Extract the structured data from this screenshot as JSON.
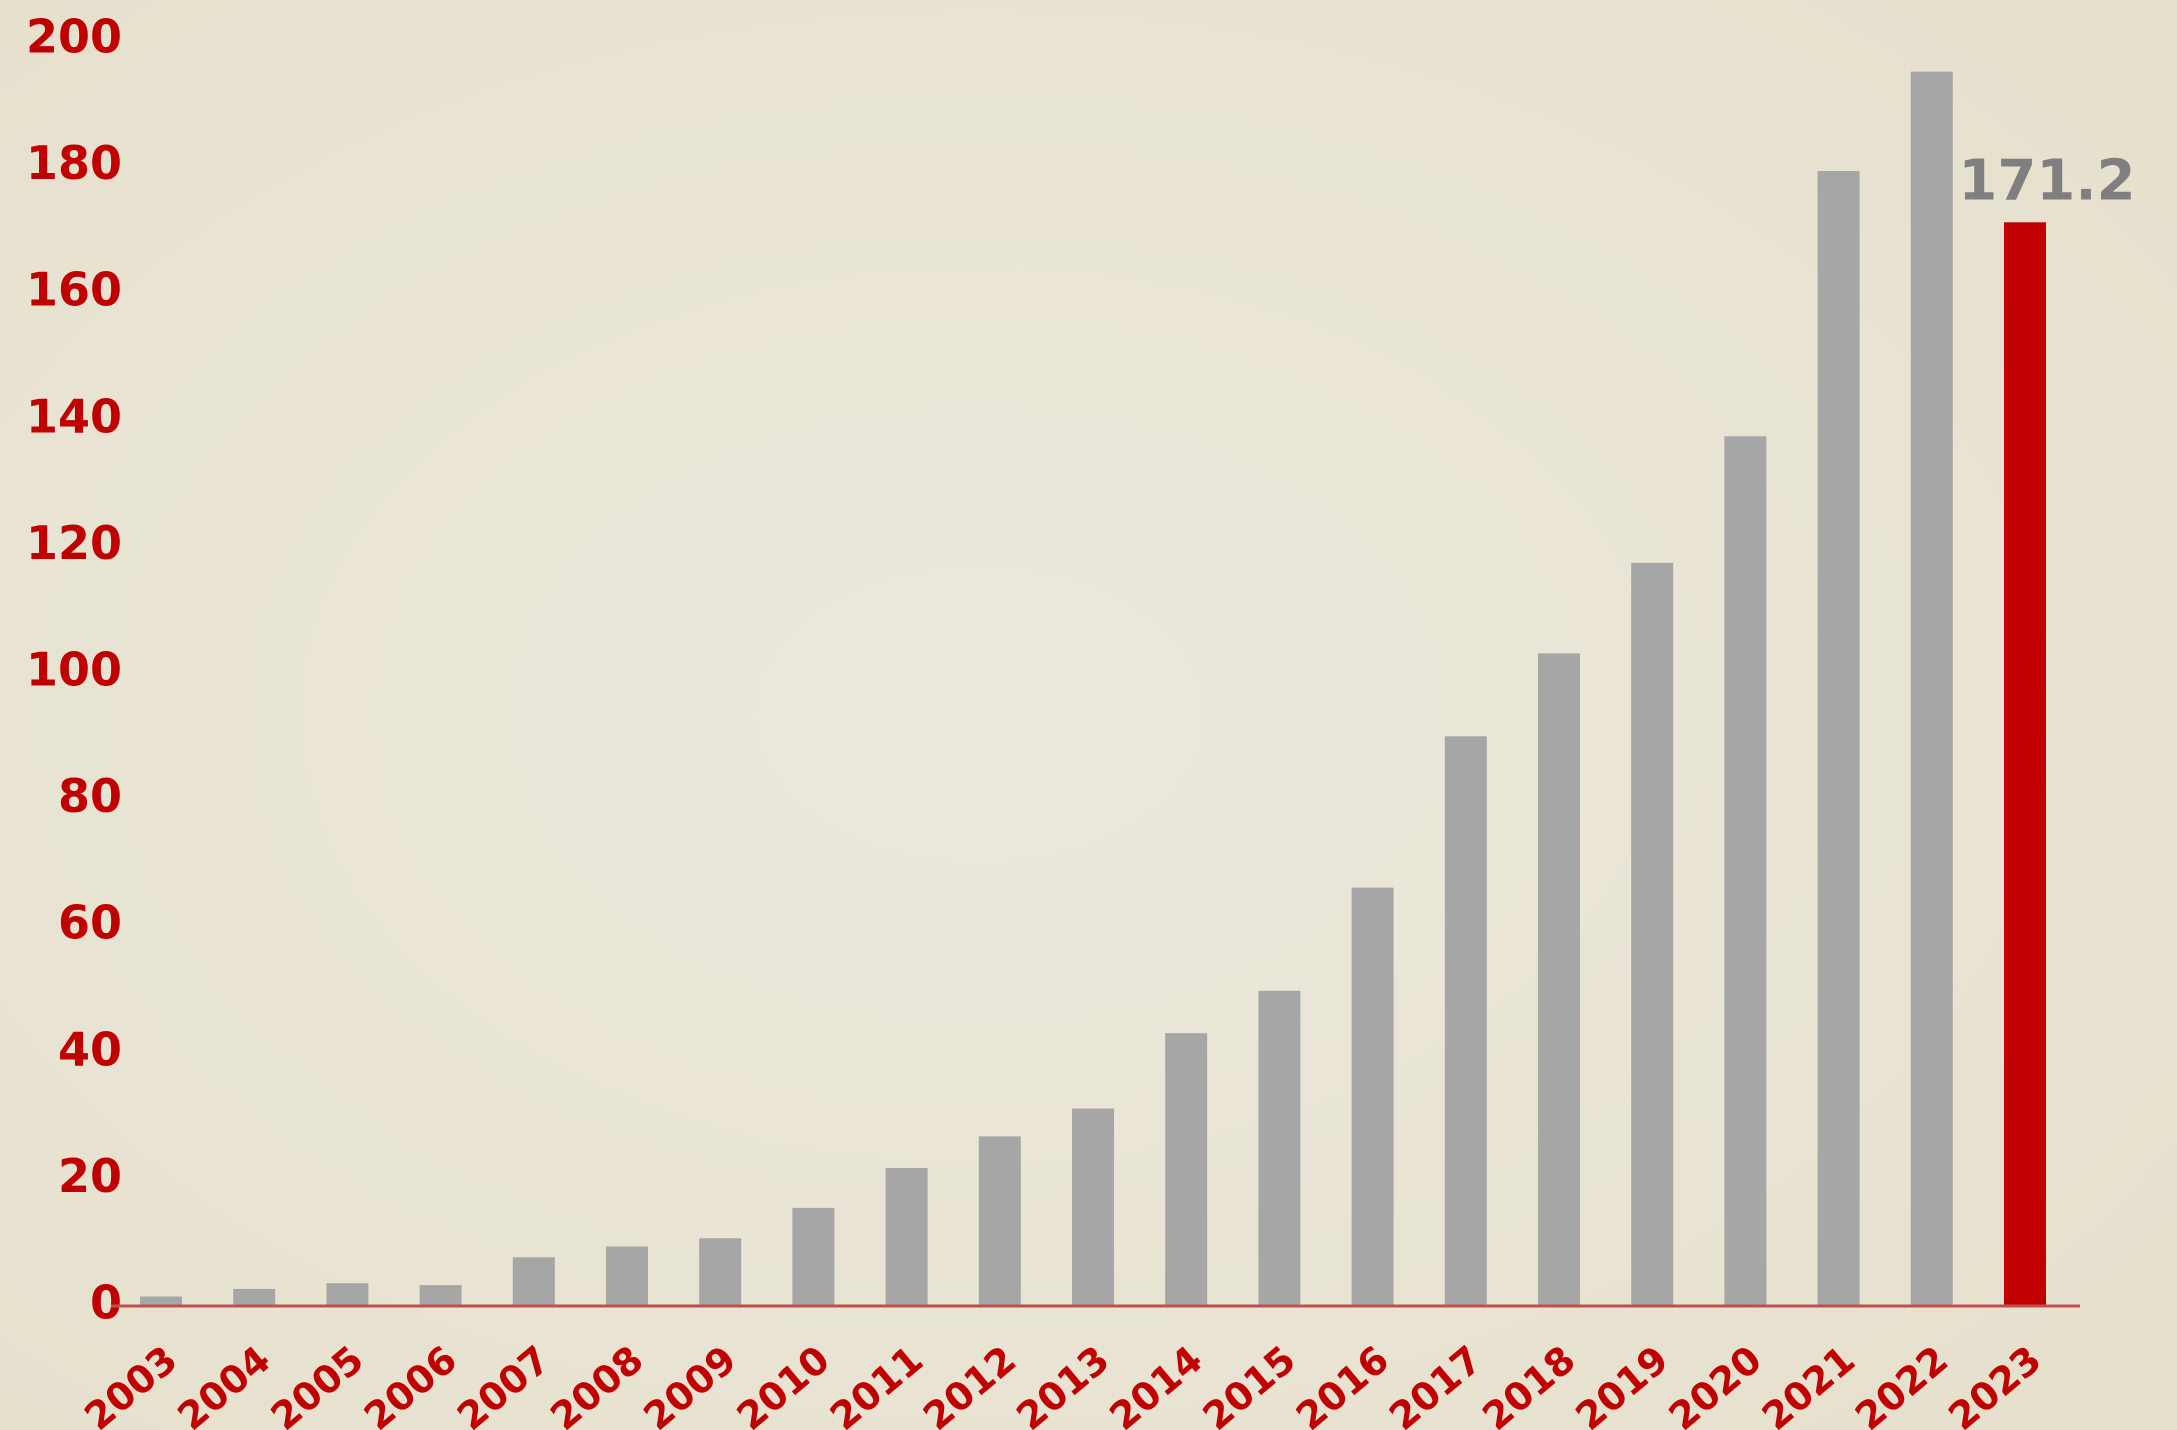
{
  "chart_data": {
    "type": "bar",
    "categories": [
      "2003",
      "2004",
      "2005",
      "2006",
      "2007",
      "2008",
      "2009",
      "2010",
      "2011",
      "2012",
      "2013",
      "2014",
      "2015",
      "2016",
      "2017",
      "2018",
      "2019",
      "2020",
      "2021",
      "2022",
      "2023"
    ],
    "values": [
      1.5,
      2.7,
      3.6,
      3.3,
      7.7,
      9.4,
      10.7,
      15.5,
      21.8,
      26.8,
      31.2,
      43.1,
      49.8,
      66.1,
      90.0,
      103.1,
      117.4,
      137.4,
      179.3,
      195.0,
      171.2
    ],
    "colors": [
      "#a6a6a6",
      "#a6a6a6",
      "#a6a6a6",
      "#a6a6a6",
      "#a6a6a6",
      "#a6a6a6",
      "#a6a6a6",
      "#a6a6a6",
      "#a6a6a6",
      "#a6a6a6",
      "#a6a6a6",
      "#a6a6a6",
      "#a6a6a6",
      "#a6a6a6",
      "#a6a6a6",
      "#a6a6a6",
      "#a6a6a6",
      "#a6a6a6",
      "#a6a6a6",
      "#a6a6a6",
      "#c00000"
    ],
    "data_labels": "last",
    "ylim": [
      0,
      200
    ],
    "yticks": [
      0,
      20,
      40,
      60,
      80,
      100,
      120,
      140,
      160,
      180,
      200
    ],
    "grid": false
  }
}
